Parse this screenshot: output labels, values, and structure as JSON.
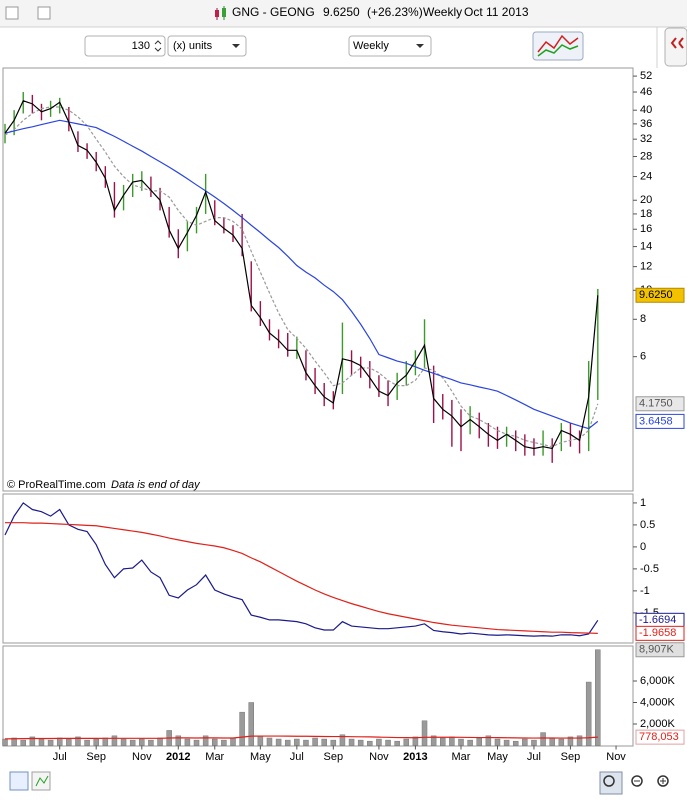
{
  "toolbar": {
    "symbol": "GNG - GEONG",
    "price": "9.6250",
    "change": "(+26.23%)",
    "period": "Weekly",
    "date": "Oct 11 2013",
    "bars": "130",
    "units": "(x) units",
    "timeframe": "Weekly"
  },
  "footer": {
    "copyright": "© ProRealTime.com",
    "note": "Data is end of day"
  },
  "chart_data": [
    {
      "type": "ohlc",
      "log_scale": true,
      "ylim": [
        2.15,
        54.5
      ],
      "yticks": [
        52,
        46,
        40,
        36,
        32,
        28,
        24,
        20,
        18,
        16,
        14,
        12,
        10,
        8,
        6
      ],
      "up_color": "#3a9a2a",
      "down_color": "#a01048",
      "close_color": "#000000",
      "label_fill": "#f2c200",
      "close_label": "9.6250",
      "high": [
        36,
        40,
        46,
        45,
        42,
        43,
        44,
        41,
        34,
        31,
        29,
        26,
        23,
        22.5,
        24.5,
        25,
        24,
        22,
        19,
        16,
        17,
        19,
        24.5,
        20,
        17.5,
        16.5,
        18,
        12.5,
        9.2,
        8,
        7.4,
        7.2,
        7,
        6.3,
        5.5,
        4.9,
        4.6,
        7.8,
        6.3,
        6,
        5.8,
        5.2,
        5,
        5.3,
        5.8,
        6.3,
        8,
        5.6,
        4.5,
        4.3,
        4,
        4.1,
        3.9,
        3.6,
        3.5,
        3.5,
        3.4,
        3.3,
        3.2,
        3.4,
        3.2,
        3.6,
        3.6,
        3.4,
        5.8,
        10.1,
        null,
        null
      ],
      "low": [
        31,
        33,
        39,
        39,
        37,
        38,
        39,
        34,
        29,
        27.5,
        25,
        22,
        17.5,
        18.5,
        20.5,
        21.5,
        20.5,
        18.5,
        15,
        12.8,
        13.5,
        15.5,
        18,
        16.5,
        15.5,
        14.5,
        13,
        8.5,
        7.6,
        6.8,
        6.4,
        6,
        5.9,
        5,
        4.5,
        4.1,
        4,
        4.5,
        5.2,
        5.1,
        4.7,
        4.4,
        4.1,
        4.3,
        4.8,
        5.2,
        5.5,
        3.6,
        3.7,
        3,
        2.9,
        3.3,
        3.2,
        3,
        2.95,
        3,
        2.9,
        2.8,
        2.8,
        2.8,
        2.65,
        2.9,
        3,
        2.85,
        2.9,
        4.3,
        null,
        null
      ],
      "close": [
        33.5,
        37,
        43,
        42,
        39.5,
        40.5,
        42.5,
        36.5,
        30.5,
        29.4,
        26.8,
        23.7,
        18.5,
        20.8,
        23,
        23.3,
        21.6,
        20,
        15.9,
        13.8,
        15.6,
        17.8,
        21.3,
        17.1,
        16.1,
        15.3,
        13.8,
        8.9,
        8.1,
        7.2,
        6.8,
        6.3,
        6.3,
        5.3,
        4.8,
        4.4,
        4.2,
        5.9,
        5.8,
        5.6,
        5.1,
        4.6,
        4.45,
        4.9,
        5.2,
        5.8,
        6.55,
        4.35,
        4,
        3.8,
        3.5,
        3.7,
        3.5,
        3.3,
        3.15,
        3.3,
        3.15,
        3,
        2.96,
        3,
        2.96,
        3.4,
        3.3,
        3.15,
        4.4,
        9.625,
        null,
        null
      ],
      "series": [
        {
          "color": "#9a9a9a",
          "dashed": true,
          "last_label": "4.1750",
          "values": [
            33,
            34.5,
            37,
            39,
            40.5,
            41,
            41,
            40,
            38,
            35.5,
            32,
            29,
            26,
            24,
            22.5,
            22,
            21.5,
            21.5,
            20.5,
            18.5,
            17,
            16.5,
            17,
            17.5,
            17.5,
            17,
            16,
            13.5,
            11.5,
            9.8,
            8.4,
            7.4,
            6.9,
            6.4,
            5.8,
            5.3,
            4.8,
            4.9,
            5.2,
            5.5,
            5.5,
            5.3,
            5,
            4.8,
            4.8,
            5,
            5.5,
            5.4,
            5.1,
            4.6,
            4.1,
            3.8,
            3.7,
            3.55,
            3.4,
            3.3,
            3.25,
            3.15,
            3.1,
            3.05,
            3,
            3.1,
            3.15,
            3.2,
            3.4,
            4.175,
            null,
            null
          ]
        },
        {
          "color": "#2a45e0",
          "dashed": false,
          "last_label": "3.6458",
          "values": [
            33.5,
            34.1,
            34.7,
            35.2,
            35.8,
            36.4,
            37,
            36.5,
            36,
            35.5,
            35,
            33.8,
            32.7,
            31.5,
            30.3,
            29.2,
            28,
            26.9,
            25.8,
            24.7,
            23.6,
            22.5,
            21.5,
            20.5,
            19.5,
            18.5,
            17.5,
            16.5,
            15.6,
            14.7,
            13.9,
            13,
            12.1,
            11.5,
            11,
            10.4,
            9.9,
            9.3,
            8.5,
            7.7,
            6.9,
            6.1,
            5.95,
            5.8,
            5.7,
            5.55,
            5.4,
            5.28,
            5.15,
            5.03,
            4.9,
            4.83,
            4.75,
            4.68,
            4.6,
            4.45,
            4.3,
            4.15,
            4,
            3.9,
            3.8,
            3.7,
            3.6,
            3.52,
            3.45,
            3.6458,
            null,
            null
          ]
        }
      ]
    },
    {
      "type": "line",
      "ylim": [
        -2.14,
        1.18
      ],
      "yticks": [
        1,
        0.5,
        0,
        -0.5,
        -1,
        -1.5
      ],
      "series": [
        {
          "color": "#1a1a8c",
          "last_label": "-1.6694",
          "values": [
            0.27,
            0.7,
            1,
            0.85,
            0.8,
            0.7,
            0.85,
            0.5,
            0.4,
            0.35,
            0.05,
            -0.4,
            -0.7,
            -0.5,
            -0.48,
            -0.3,
            -0.57,
            -0.7,
            -1.1,
            -1.16,
            -0.98,
            -0.86,
            -0.64,
            -0.98,
            -1.07,
            -1.14,
            -1.2,
            -1.55,
            -1.6,
            -1.66,
            -1.66,
            -1.68,
            -1.7,
            -1.75,
            -1.84,
            -1.89,
            -1.89,
            -1.7,
            -1.8,
            -1.82,
            -1.84,
            -1.86,
            -1.86,
            -1.84,
            -1.82,
            -1.8,
            -1.75,
            -1.9,
            -1.93,
            -1.95,
            -1.98,
            -1.96,
            -1.98,
            -2,
            -2.01,
            -2,
            -2.01,
            -2.02,
            -2.03,
            -2.02,
            -2.03,
            -2,
            -2,
            -2.02,
            -1.98,
            -1.6694,
            null,
            null
          ]
        },
        {
          "color": "#e0201a",
          "last_label": "-1.9658",
          "values": [
            0.55,
            0.55,
            0.55,
            0.54,
            0.54,
            0.53,
            0.52,
            0.51,
            0.5,
            0.49,
            0.48,
            0.45,
            0.42,
            0.39,
            0.36,
            0.33,
            0.29,
            0.25,
            0.2,
            0.16,
            0.12,
            0.08,
            0.05,
            0.02,
            -0.02,
            -0.08,
            -0.15,
            -0.25,
            -0.34,
            -0.45,
            -0.56,
            -0.67,
            -0.78,
            -0.88,
            -0.98,
            -1.07,
            -1.15,
            -1.22,
            -1.29,
            -1.35,
            -1.41,
            -1.47,
            -1.52,
            -1.56,
            -1.6,
            -1.64,
            -1.68,
            -1.72,
            -1.75,
            -1.78,
            -1.8,
            -1.82,
            -1.84,
            -1.86,
            -1.88,
            -1.89,
            -1.9,
            -1.91,
            -1.92,
            -1.93,
            -1.94,
            -1.94,
            -1.95,
            -1.955,
            -1.96,
            -1.9658,
            null,
            null
          ]
        }
      ]
    },
    {
      "type": "bar",
      "ylim": [
        0,
        9070000
      ],
      "yticks": [
        {
          "value": 2000000,
          "label": "2,000K"
        },
        {
          "value": 4000000,
          "label": "4,000K"
        },
        {
          "value": 6000000,
          "label": "6,000K"
        }
      ],
      "color": "#9a9a9a",
      "last_label": "8,907K",
      "categories": [
        null,
        null,
        null,
        null,
        null,
        null,
        "Jul",
        null,
        null,
        null,
        "Sep",
        null,
        null,
        null,
        null,
        "Nov",
        null,
        null,
        null,
        "2012",
        null,
        null,
        null,
        "Mar",
        null,
        null,
        null,
        null,
        "May",
        null,
        null,
        null,
        "Jul",
        null,
        null,
        null,
        "Sep",
        null,
        null,
        null,
        null,
        "Nov",
        null,
        null,
        null,
        "2013",
        null,
        null,
        null,
        null,
        "Mar",
        null,
        null,
        null,
        "May",
        null,
        null,
        null,
        "Jul",
        null,
        null,
        null,
        "Sep",
        null,
        null,
        null,
        null,
        "Nov"
      ],
      "values": [
        600000,
        700000,
        500000,
        800000,
        600000,
        500000,
        700000,
        600000,
        800000,
        500000,
        600000,
        700000,
        900000,
        600000,
        500000,
        600000,
        500000,
        700000,
        1400000,
        900000,
        600000,
        500000,
        900000,
        600000,
        500000,
        700000,
        3100000,
        4000000,
        900000,
        700000,
        600000,
        500000,
        600000,
        500000,
        700000,
        600000,
        500000,
        1000000,
        600000,
        500000,
        400000,
        600000,
        500000,
        400000,
        600000,
        800000,
        2300000,
        900000,
        700000,
        800000,
        600000,
        500000,
        700000,
        900000,
        600000,
        500000,
        400000,
        600000,
        500000,
        1200000,
        700000,
        600000,
        800000,
        900000,
        5900000,
        8907000,
        null,
        null
      ],
      "series": [
        {
          "color": "#e0201a",
          "last_label": "778,053",
          "values": [
            620000,
            630000,
            640000,
            650000,
            650000,
            650000,
            660000,
            660000,
            660000,
            660000,
            660000,
            670000,
            670000,
            670000,
            670000,
            670000,
            670000,
            670000,
            700000,
            710000,
            710000,
            700000,
            710000,
            710000,
            700000,
            700000,
            780000,
            870000,
            880000,
            880000,
            880000,
            870000,
            860000,
            860000,
            850000,
            840000,
            830000,
            830000,
            820000,
            810000,
            800000,
            780000,
            760000,
            740000,
            730000,
            720000,
            760000,
            770000,
            770000,
            770000,
            760000,
            750000,
            740000,
            740000,
            730000,
            720000,
            710000,
            700000,
            690000,
            700000,
            700000,
            690000,
            690000,
            690000,
            720000,
            778053,
            null,
            null
          ]
        }
      ]
    }
  ]
}
